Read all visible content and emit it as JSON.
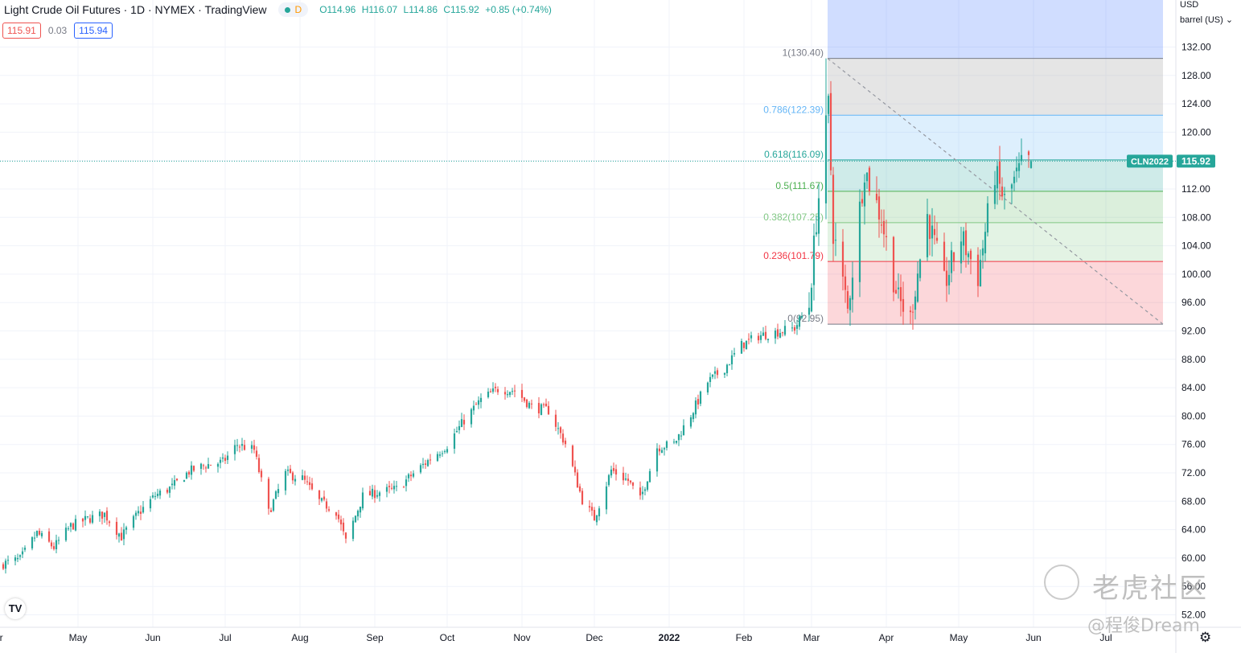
{
  "header": {
    "symbol": "Light Crude Oil Futures · 1D · NYMEX · TradingView",
    "badge": "D",
    "ohlc": {
      "open": "O114.96",
      "high": "H116.07",
      "low": "L114.86",
      "close": "C115.92",
      "change": "+0.85 (+0.74%)"
    },
    "bid": "115.91",
    "spread": "0.03",
    "ask": "115.94"
  },
  "axis": {
    "currency": "USD",
    "unit": "barrel (US)"
  },
  "price_label": {
    "ticker": "CLN2022",
    "value": "115.92"
  },
  "watermark": {
    "line1": "老虎社区",
    "line2": "@程俊Dream"
  },
  "colors": {
    "up": "#26a69a",
    "down": "#ef5350",
    "fib_high": "#d6d6d6",
    "fib_786": "#64b5f6",
    "fib_618": "#26a69a",
    "fib_5": "#4caf50",
    "fib_382": "#81c784",
    "fib_236": "#f23645"
  },
  "chart_data": {
    "type": "candlestick",
    "ylim": [
      50,
      136
    ],
    "y_ticks": [
      "52.00",
      "56.00",
      "60.00",
      "64.00",
      "68.00",
      "72.00",
      "76.00",
      "80.00",
      "84.00",
      "88.00",
      "92.00",
      "96.00",
      "100.00",
      "104.00",
      "108.00",
      "112.00",
      "116.00",
      "120.00",
      "124.00",
      "128.00",
      "132.00"
    ],
    "x_ticks": [
      "pr",
      "May",
      "Jun",
      "Jul",
      "Aug",
      "Sep",
      "Oct",
      "Nov",
      "Dec",
      "2022",
      "Feb",
      "Mar",
      "Apr",
      "May",
      "Jun",
      "Jul"
    ],
    "last_price": 115.92,
    "fib_levels": [
      {
        "label": "1(130.40)",
        "ratio": 1,
        "price": 130.4
      },
      {
        "label": "0.786(122.39)",
        "ratio": 0.786,
        "price": 122.39
      },
      {
        "label": "0.618(116.09)",
        "ratio": 0.618,
        "price": 116.09
      },
      {
        "label": "0.5(111.67)",
        "ratio": 0.5,
        "price": 111.67
      },
      {
        "label": "0.382(107.25)",
        "ratio": 0.382,
        "price": 107.25
      },
      {
        "label": "0.236(101.79)",
        "ratio": 0.236,
        "price": 101.79
      },
      {
        "label": "0(92.95)",
        "ratio": 0,
        "price": 92.95
      }
    ],
    "anchors": [
      [
        "2021-03-31",
        59.2
      ],
      [
        "2021-04-07",
        59.8
      ],
      [
        "2021-04-14",
        63.5
      ],
      [
        "2021-04-21",
        61.5
      ],
      [
        "2021-04-28",
        64.5
      ],
      [
        "2021-05-05",
        65.5
      ],
      [
        "2021-05-12",
        66.2
      ],
      [
        "2021-05-19",
        63.0
      ],
      [
        "2021-05-26",
        66.3
      ],
      [
        "2021-06-02",
        68.8
      ],
      [
        "2021-06-09",
        70.0
      ],
      [
        "2021-06-16",
        72.2
      ],
      [
        "2021-06-23",
        73.1
      ],
      [
        "2021-06-30",
        73.5
      ],
      [
        "2021-07-06",
        76.0
      ],
      [
        "2021-07-13",
        75.2
      ],
      [
        "2021-07-19",
        66.4
      ],
      [
        "2021-07-26",
        71.9
      ],
      [
        "2021-08-02",
        71.2
      ],
      [
        "2021-08-09",
        68.0
      ],
      [
        "2021-08-16",
        66.6
      ],
      [
        "2021-08-20",
        62.3
      ],
      [
        "2021-08-27",
        68.7
      ],
      [
        "2021-09-03",
        69.3
      ],
      [
        "2021-09-10",
        69.7
      ],
      [
        "2021-09-17",
        71.9
      ],
      [
        "2021-09-24",
        74.0
      ],
      [
        "2021-10-01",
        75.9
      ],
      [
        "2021-10-08",
        79.4
      ],
      [
        "2021-10-15",
        82.3
      ],
      [
        "2021-10-22",
        83.8
      ],
      [
        "2021-10-29",
        83.6
      ],
      [
        "2021-11-05",
        81.3
      ],
      [
        "2021-11-12",
        80.8
      ],
      [
        "2021-11-19",
        76.1
      ],
      [
        "2021-11-26",
        68.2
      ],
      [
        "2021-12-01",
        65.6
      ],
      [
        "2021-12-08",
        72.4
      ],
      [
        "2021-12-15",
        70.9
      ],
      [
        "2021-12-20",
        68.2
      ],
      [
        "2021-12-27",
        75.6
      ],
      [
        "2022-01-03",
        76.1
      ],
      [
        "2022-01-10",
        80.2
      ],
      [
        "2022-01-17",
        84.8
      ],
      [
        "2022-01-24",
        86.8
      ],
      [
        "2022-01-31",
        90.0
      ],
      [
        "2022-02-07",
        91.3
      ],
      [
        "2022-02-14",
        91.8
      ],
      [
        "2022-02-22",
        92.4
      ],
      [
        "2022-02-28",
        95.7
      ],
      [
        "2022-03-03",
        107.7
      ],
      [
        "2022-03-08",
        123.7
      ],
      [
        "2022-03-10",
        106.0
      ],
      [
        "2022-03-16",
        95.0
      ],
      [
        "2022-03-23",
        114.9
      ],
      [
        "2022-03-30",
        107.8
      ],
      [
        "2022-04-06",
        96.2
      ],
      [
        "2022-04-11",
        94.3
      ],
      [
        "2022-04-18",
        108.2
      ],
      [
        "2022-04-25",
        98.5
      ],
      [
        "2022-05-02",
        105.2
      ],
      [
        "2022-05-09",
        99.8
      ],
      [
        "2022-05-16",
        114.2
      ],
      [
        "2022-05-20",
        110.3
      ],
      [
        "2022-05-27",
        115.1
      ],
      [
        "2022-05-31",
        115.92
      ]
    ]
  }
}
